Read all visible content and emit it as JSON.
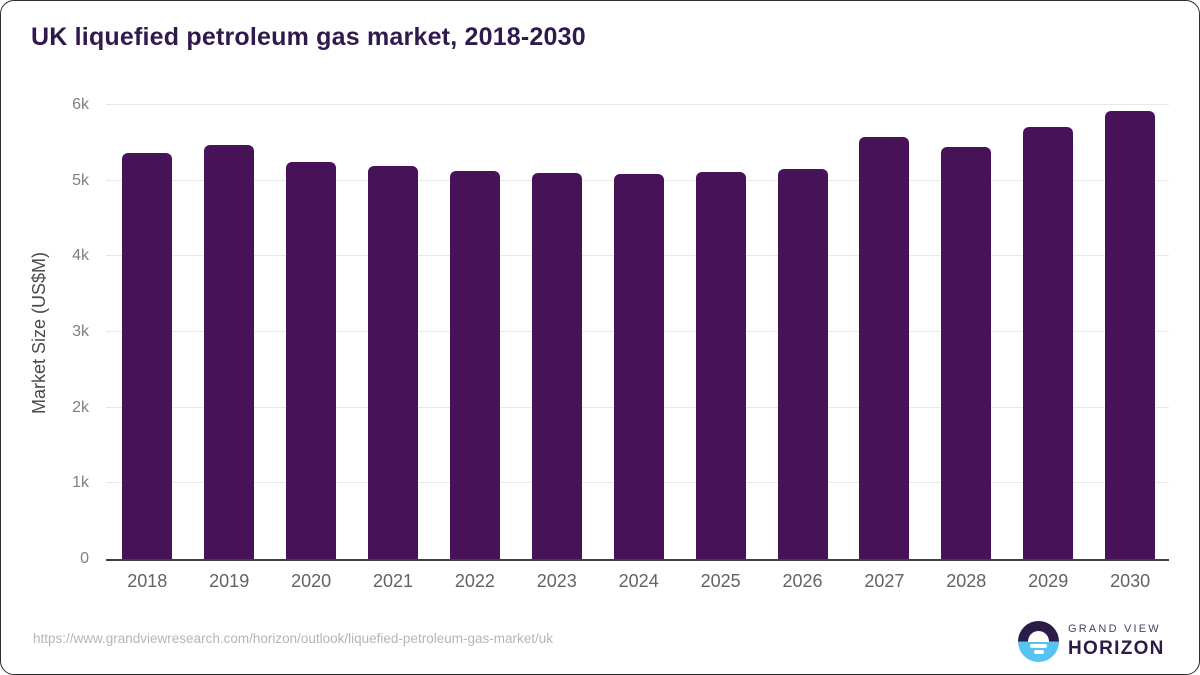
{
  "chart": {
    "title": "UK liquefied petroleum gas market, 2018-2030",
    "ylabel": "Market Size (US$M)"
  },
  "chart_data": {
    "type": "bar",
    "title": "UK liquefied petroleum gas market, 2018-2030",
    "xlabel": "",
    "ylabel": "Market Size (US$M)",
    "categories": [
      "2018",
      "2019",
      "2020",
      "2021",
      "2022",
      "2023",
      "2024",
      "2025",
      "2026",
      "2027",
      "2028",
      "2029",
      "2030"
    ],
    "values": [
      5360,
      5470,
      5250,
      5190,
      5125,
      5100,
      5090,
      5115,
      5150,
      5580,
      5450,
      5705,
      5920
    ],
    "ylim": [
      0,
      6000
    ],
    "ytick_labels": [
      "0",
      "1k",
      "2k",
      "3k",
      "4k",
      "5k",
      "6k"
    ],
    "grid": true,
    "legend": false,
    "bar_color": "#481259"
  },
  "colors": {
    "bar": "#481259",
    "title": "#301a4d",
    "axis_line": "#3f3f3f",
    "gridline": "#e8e8e8",
    "tick_label": "#808080",
    "logo_dark_purple": "#2b1b47",
    "logo_light_blue": "#58c2f0"
  },
  "footer": {
    "source_url": "https://www.grandviewresearch.com/horizon/outlook/liquefied-petroleum-gas-market/uk",
    "logo": {
      "line1": "GRAND VIEW",
      "line2": "HORIZON"
    }
  }
}
